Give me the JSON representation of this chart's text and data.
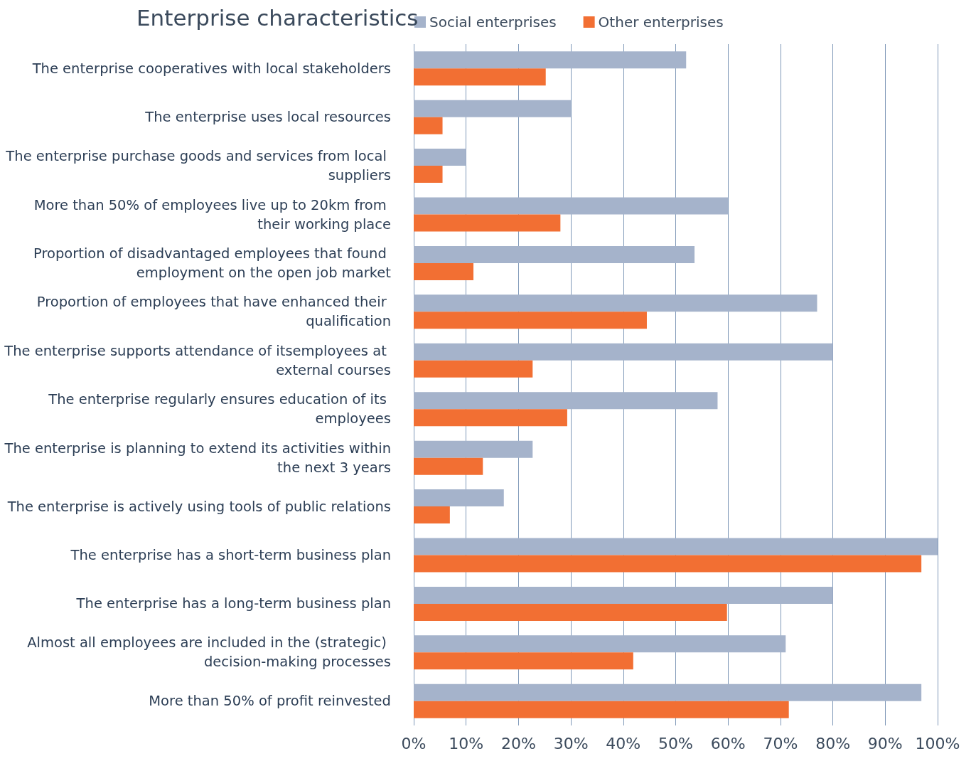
{
  "chart_data": {
    "type": "bar",
    "orientation": "horizontal",
    "title": "Enterprise characteristics",
    "categories": [
      "The enterprise cooperatives with local stakeholders",
      "The enterprise uses local resources",
      "The enterprise purchase goods and services from local suppliers",
      "More than 50% of employees live up to 20km from their working place",
      "Proportion of disadvantaged employees that found employment on the open job market",
      "Proportion of employees that have enhanced their qualification",
      "The enterprise supports attendance of itsemployees at external courses",
      "The enterprise regularly ensures education of its employees",
      "The enterprise is planning to extend its activities within the next 3 years",
      "The enterprise is actively using tools of public relations",
      "The enterprise has a short-term business plan",
      "The enterprise has a long-term business plan",
      "Almost all employees are included in the (strategic) decision-making processes",
      "More than 50% of profit reinvested"
    ],
    "series": [
      {
        "name": "Social enterprises",
        "color": "#a5b3cb",
        "values": [
          52,
          30,
          10,
          60,
          53.6,
          77,
          80,
          58,
          22.7,
          17.2,
          100,
          80,
          71,
          96.9
        ]
      },
      {
        "name": "Other enterprises",
        "color": "#f26f33",
        "values": [
          25.2,
          5.5,
          5.5,
          28,
          11.4,
          44.5,
          22.7,
          29.3,
          13.2,
          6.9,
          96.9,
          59.8,
          41.9,
          71.6
        ]
      }
    ],
    "xlim": [
      0,
      100
    ],
    "xticks": [
      {
        "value": 0,
        "label": "0%"
      },
      {
        "value": 10,
        "label": "10%"
      },
      {
        "value": 20,
        "label": "20%"
      },
      {
        "value": 30,
        "label": "30%"
      },
      {
        "value": 40,
        "label": "40%"
      },
      {
        "value": 50,
        "label": "50%"
      },
      {
        "value": 60,
        "label": "60%"
      },
      {
        "value": 70,
        "label": "70%"
      },
      {
        "value": 80,
        "label": "80%"
      },
      {
        "value": 90,
        "label": "90%"
      },
      {
        "value": 100,
        "label": "100%"
      }
    ],
    "grid": "x",
    "legend": "top"
  }
}
